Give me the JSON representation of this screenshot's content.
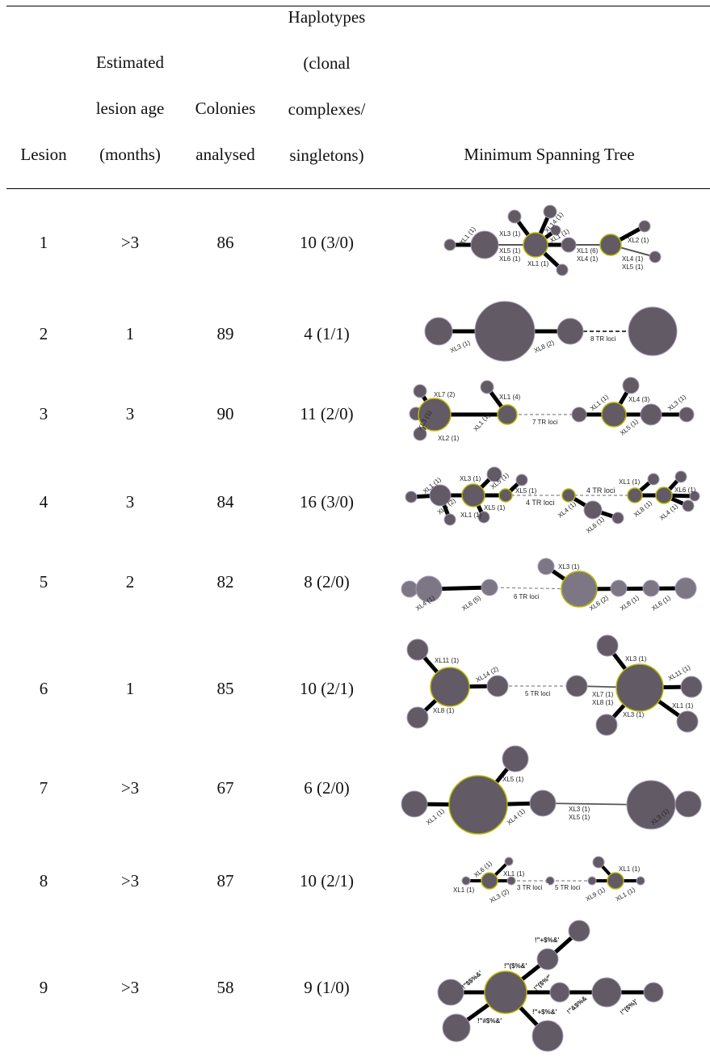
{
  "header": {
    "lesion": [
      "Lesion"
    ],
    "age": [
      "Estimated",
      "lesion age",
      "(months)"
    ],
    "colonies": [
      "Colonies",
      "analysed"
    ],
    "haplotypes": [
      "Haplotypes",
      "(clonal",
      "complexes/",
      "singletons)"
    ],
    "mst": [
      "Minimum Spanning Tree"
    ]
  },
  "rows": [
    {
      "lesion": "1",
      "age": ">3",
      "colonies": "86",
      "haplotypes": "10 (3/0)"
    },
    {
      "lesion": "2",
      "age": "1",
      "colonies": "89",
      "haplotypes": "4 (1/1)"
    },
    {
      "lesion": "3",
      "age": "3",
      "colonies": "90",
      "haplotypes": "11 (2/0)"
    },
    {
      "lesion": "4",
      "age": "3",
      "colonies": "84",
      "haplotypes": "16 (3/0)"
    },
    {
      "lesion": "5",
      "age": "2",
      "colonies": "82",
      "haplotypes": "8 (2/0)"
    },
    {
      "lesion": "6",
      "age": "1",
      "colonies": "85",
      "haplotypes": "10 (2/1)"
    },
    {
      "lesion": "7",
      "age": ">3",
      "colonies": "67",
      "haplotypes": "6 (2/0)"
    },
    {
      "lesion": "8",
      "age": ">3",
      "colonies": "87",
      "haplotypes": "10 (2/1)"
    },
    {
      "lesion": "9",
      "age": ">3",
      "colonies": "58",
      "haplotypes": "9 (1/0)"
    }
  ],
  "colors": {
    "node": "#625a64",
    "node_light": "#7d7785",
    "node_border": "#a89bb8",
    "founder_border": "#b8b800",
    "edge": "#000000",
    "dashed": "#888888"
  },
  "trees": {
    "t1": {
      "xl1": "XL1 (1)",
      "xl3": "XL3 (1)",
      "xl14": "XL14 (1)",
      "xl1b": "XL1 (1)",
      "xl5": "XL5 (1)",
      "xl6": "XL6 (1)",
      "xl1c": "XL1 (1)",
      "xl1d": "XL1 (6)",
      "xl4": "XL4 (1)",
      "xl2": "XL2 (1)",
      "xl4b": "XL4 (1)",
      "xl5b": "XL5 (1)"
    },
    "t2": {
      "xl3": "XL3 (1)",
      "xl8": "XL8 (2)",
      "tr": "8 TR loci"
    },
    "t3": {
      "xl7": "XL7 (2)",
      "xl3": "XL3 (1)",
      "xl2": "XL2 (1)",
      "xl1": "XL1 (1)",
      "xl1b": "XL1 (4)",
      "tr": "7 TR loci",
      "xl1c": "XL1 (1)",
      "xl4": "XL4 (3)",
      "xl5": "XL5 (1)",
      "xl3b": "XL3 (1)"
    },
    "t4": {
      "xl1": "XL1 (1)",
      "xl3": "XL3 (1)",
      "xl5": "XL5 (1)",
      "xl8": "XL8 (2)",
      "xl1b": "XL1 (1)",
      "xl5b": "XL5 (1)",
      "xl5c": "XL5 (1)",
      "tr1": "4 TR loci",
      "tr2": "4 TR loci",
      "xl4": "XL4 (1)",
      "xl6": "XL6 (1)",
      "xl1c": "XL1 (1)",
      "xl8b": "XL8 (1)",
      "xl6b": "XL6 (1)",
      "xl4b": "XL4 (1)"
    },
    "t5": {
      "xl4": "XL4 (1)",
      "xl6": "XL6 (5)",
      "tr": "6 TR loci",
      "xl3": "XL3 (1)",
      "xl6b": "XL6 (2)",
      "xl8": "XL8 (1)",
      "xl6c": "XL6 (1)"
    },
    "t6": {
      "xl11": "XL11 (1)",
      "xl14": "XL14 (2)",
      "xl8": "XL8 (1)",
      "tr": "5 TR loci",
      "xl3": "XL3 (1)",
      "xl7": "XL7 (1)",
      "xl8b": "XL8 (1)",
      "xl11b": "XL11 (1)",
      "xl1": "XL1 (1)",
      "xl3b": "XL3 (1)"
    },
    "t7": {
      "xl5": "XL5 (1)",
      "xl1": "XL1 (1)",
      "xl4": "XL4 (1)",
      "xl3": "XL3 (1)",
      "xl5b": "XL5 (1)",
      "xl3b": "XL3 (1)"
    },
    "t8": {
      "xl6": "XL6 (1)",
      "xl1": "XL1 (1)",
      "xl1b": "XL1 (1)",
      "xl3": "XL3 (2)",
      "tr1": "3 TR loci",
      "tr2": "5 TR loci",
      "xl1c": "XL1 (1)",
      "xl9": "XL9 (1)",
      "xl1d": "XL1 (1)"
    },
    "t9": {
      "a": "!\"+$%&'",
      "b": "!\"$$%&'",
      "c": "!\"($%&'",
      "d": "!\"($%*'",
      "e": "!\"#$%&'",
      "f": "!\"+$%&'",
      "g": "!\"&$%&",
      "h": "!\"($%)'"
    }
  }
}
